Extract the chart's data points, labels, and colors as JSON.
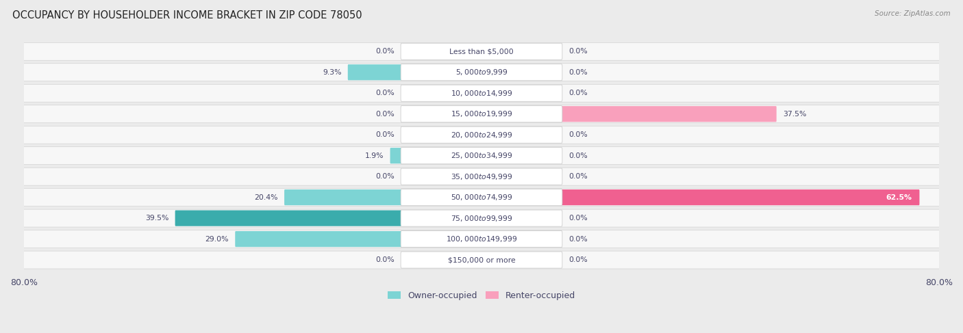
{
  "title": "OCCUPANCY BY HOUSEHOLDER INCOME BRACKET IN ZIP CODE 78050",
  "source": "Source: ZipAtlas.com",
  "categories": [
    "Less than $5,000",
    "$5,000 to $9,999",
    "$10,000 to $14,999",
    "$15,000 to $19,999",
    "$20,000 to $24,999",
    "$25,000 to $34,999",
    "$35,000 to $49,999",
    "$50,000 to $74,999",
    "$75,000 to $99,999",
    "$100,000 to $149,999",
    "$150,000 or more"
  ],
  "owner_values": [
    0.0,
    9.3,
    0.0,
    0.0,
    0.0,
    1.9,
    0.0,
    20.4,
    39.5,
    29.0,
    0.0
  ],
  "renter_values": [
    0.0,
    0.0,
    0.0,
    37.5,
    0.0,
    0.0,
    0.0,
    62.5,
    0.0,
    0.0,
    0.0
  ],
  "owner_color_light": "#7dd4d4",
  "owner_color_dark": "#3aacac",
  "renter_color_light": "#f9a0bc",
  "renter_color_dark": "#f06090",
  "owner_label": "Owner-occupied",
  "renter_label": "Renter-occupied",
  "axis_max": 80.0,
  "background_color": "#ebebeb",
  "row_bg_color": "#f7f7f7",
  "row_alt_color": "#eeeeee",
  "title_color": "#222222",
  "label_color": "#444466",
  "value_color": "#444466",
  "source_color": "#888888",
  "center_label_box_color": "#f0f0f0",
  "center_label_box_edge": "#cccccc"
}
